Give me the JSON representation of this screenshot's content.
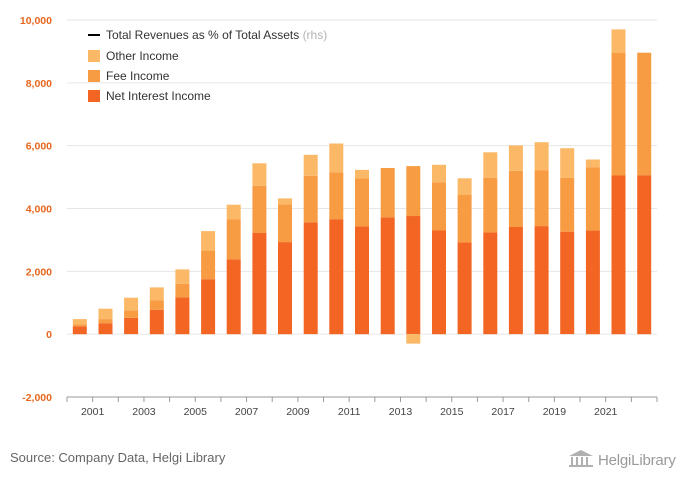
{
  "chart_data": {
    "type": "bar",
    "stacked": true,
    "categories": [
      "2000",
      "2001",
      "2002",
      "2003",
      "2004",
      "2005",
      "2006",
      "2007",
      "2008",
      "2009",
      "2010",
      "2011",
      "2012",
      "2013",
      "2014",
      "2015",
      "2016",
      "2017",
      "2018",
      "2019",
      "2020",
      "2021",
      "2022"
    ],
    "x_tick_labels": [
      "2001",
      "2003",
      "2005",
      "2007",
      "2009",
      "2011",
      "2013",
      "2015",
      "2017",
      "2019",
      "2021"
    ],
    "y_tick_labels": [
      "-2,000",
      "0",
      "2,000",
      "4,000",
      "6,000",
      "8,000",
      "10,000"
    ],
    "ylim": [
      -2000,
      10000
    ],
    "grid": true,
    "legend_position": "top-left",
    "series": [
      {
        "name": "Net Interest Income",
        "color": "#f26522",
        "values": [
          250,
          350,
          520,
          780,
          1170,
          1750,
          2380,
          3220,
          2930,
          3560,
          3660,
          3430,
          3720,
          3760,
          3300,
          2920,
          3240,
          3410,
          3440,
          3260,
          3300,
          5050,
          5060
        ]
      },
      {
        "name": "Fee Income",
        "color": "#f89c44",
        "values": [
          60,
          130,
          240,
          300,
          430,
          910,
          1270,
          1500,
          1200,
          1480,
          1490,
          1530,
          1570,
          1590,
          1530,
          1510,
          1740,
          1790,
          1770,
          1720,
          2010,
          3900,
          3900
        ]
      },
      {
        "name": "Other Income",
        "color": "#fbb866",
        "values": [
          170,
          330,
          400,
          410,
          460,
          620,
          470,
          720,
          190,
          670,
          920,
          270,
          0,
          -300,
          560,
          530,
          810,
          810,
          900,
          940,
          250,
          750,
          0
        ]
      }
    ],
    "line_series": {
      "name": "Total Revenues as % of Total Assets",
      "axis_note": "(rhs)",
      "color": "#000000"
    }
  },
  "source": "Source: Company Data, Helgi Library",
  "logo_text": "HelgiLibrary"
}
